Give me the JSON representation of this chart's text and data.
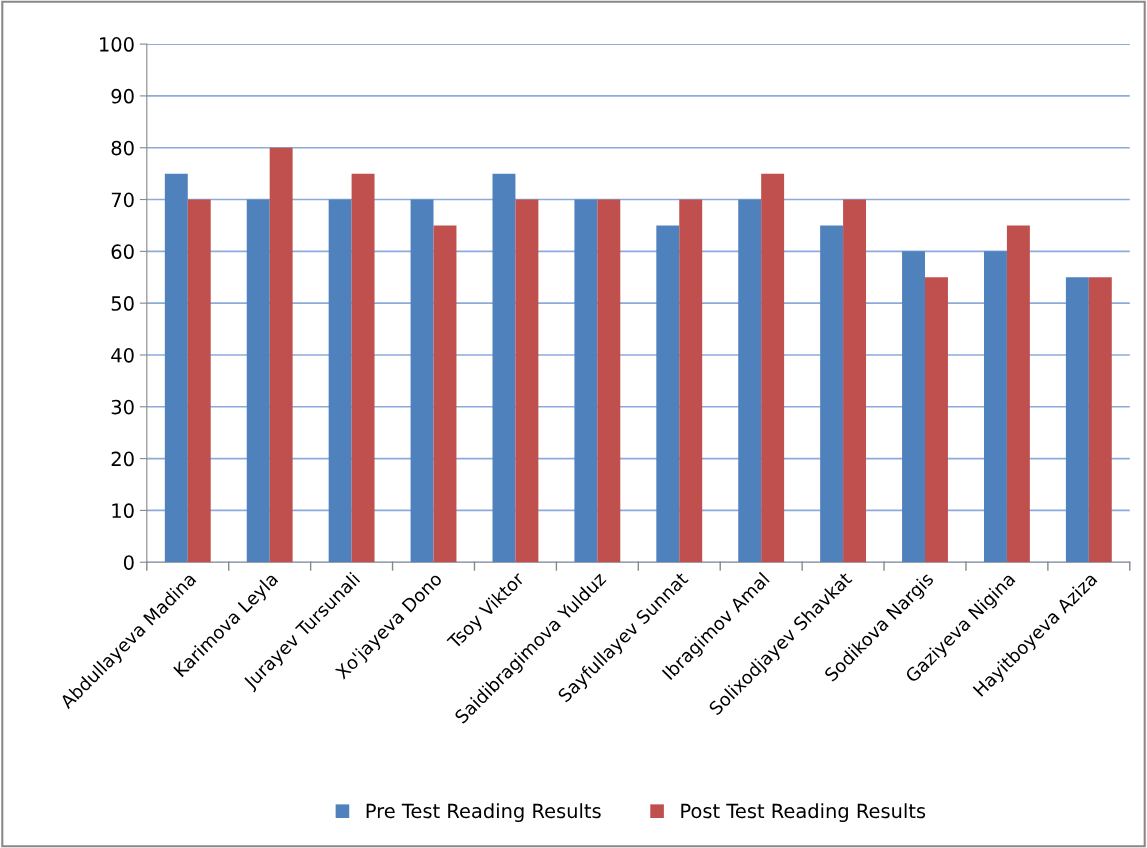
{
  "chart_data": {
    "type": "bar",
    "categories": [
      "Abdullayeva Madina",
      "Karimova Leyla",
      "Jurayev Tursunali",
      "Xo'jayeva Dono",
      "Tsoy Viktor",
      "Saidibragimova Yulduz",
      "Sayfullayev Sunnat",
      "Ibragimov Amal",
      "Solixodjayev Shavkat",
      "Sodikova Nargis",
      "Gaziyeva Nigina",
      "Hayitboyeva Aziza"
    ],
    "series": [
      {
        "name": "Pre Test Reading Results",
        "color": "#4f81bd",
        "values": [
          75,
          70,
          70,
          70,
          75,
          70,
          65,
          70,
          65,
          60,
          60,
          55
        ]
      },
      {
        "name": "Post Test Reading Results",
        "color": "#c0504d",
        "values": [
          70,
          80,
          75,
          65,
          70,
          70,
          70,
          75,
          70,
          55,
          65,
          55
        ]
      }
    ],
    "ylim": [
      0,
      100
    ],
    "yticks": [
      0,
      10,
      20,
      30,
      40,
      50,
      60,
      70,
      80,
      90,
      100
    ],
    "grid": "y",
    "legend": "bottom"
  }
}
